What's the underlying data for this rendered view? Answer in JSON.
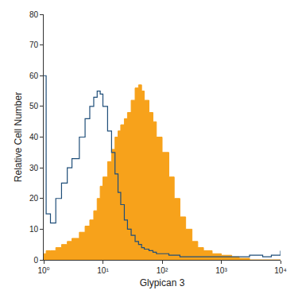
{
  "chart_data": {
    "type": "histogram",
    "x_label": "Glypican 3",
    "y_label": "Relative Cell Number",
    "log": "x",
    "grid": false,
    "x": [
      1,
      1.1,
      1.3,
      1.6,
      2,
      2.5,
      3,
      4,
      5,
      6,
      7,
      8,
      9,
      10,
      12,
      14,
      16,
      18,
      20,
      23,
      26,
      30,
      35,
      40,
      45,
      50,
      60,
      70,
      80,
      100,
      130,
      160,
      200,
      250,
      320,
      400,
      500,
      700,
      1000,
      1500,
      2000,
      3000,
      5000,
      7000,
      10000
    ],
    "series": [
      {
        "type": "area",
        "color": "#f7a21b",
        "values": [
          2,
          3,
          3,
          4,
          5,
          6,
          7,
          9,
          11,
          13,
          16,
          20,
          24,
          27,
          32,
          36,
          40,
          42,
          44,
          46,
          48,
          52,
          56,
          57,
          55,
          52,
          48,
          45,
          40,
          35,
          27,
          20,
          14,
          10,
          6,
          4,
          3,
          2,
          1.5,
          1,
          0.5,
          0,
          0,
          0,
          0
        ]
      },
      {
        "type": "line",
        "color": "#1f4e79",
        "values": [
          60,
          15,
          12,
          20,
          25,
          30,
          33,
          40,
          46,
          50,
          53,
          55,
          54,
          50,
          42,
          35,
          28,
          22,
          18,
          13,
          10,
          8,
          6,
          5,
          4,
          3.5,
          3,
          2.5,
          2,
          2,
          1.5,
          1.5,
          1,
          1,
          1,
          1,
          1,
          1,
          1,
          1,
          1,
          1.5,
          1,
          1.5,
          3
        ]
      }
    ],
    "xlim": [
      1,
      10000
    ],
    "xticks": [
      {
        "value": 1,
        "label": "10⁰"
      },
      {
        "value": 10,
        "label": "10¹"
      },
      {
        "value": 100,
        "label": "10²"
      },
      {
        "value": 1000,
        "label": "10³"
      },
      {
        "value": 10000,
        "label": "10⁴"
      }
    ],
    "ylim": [
      0,
      80
    ],
    "yticks": [
      0,
      10,
      20,
      30,
      40,
      50,
      60,
      70,
      80
    ]
  }
}
